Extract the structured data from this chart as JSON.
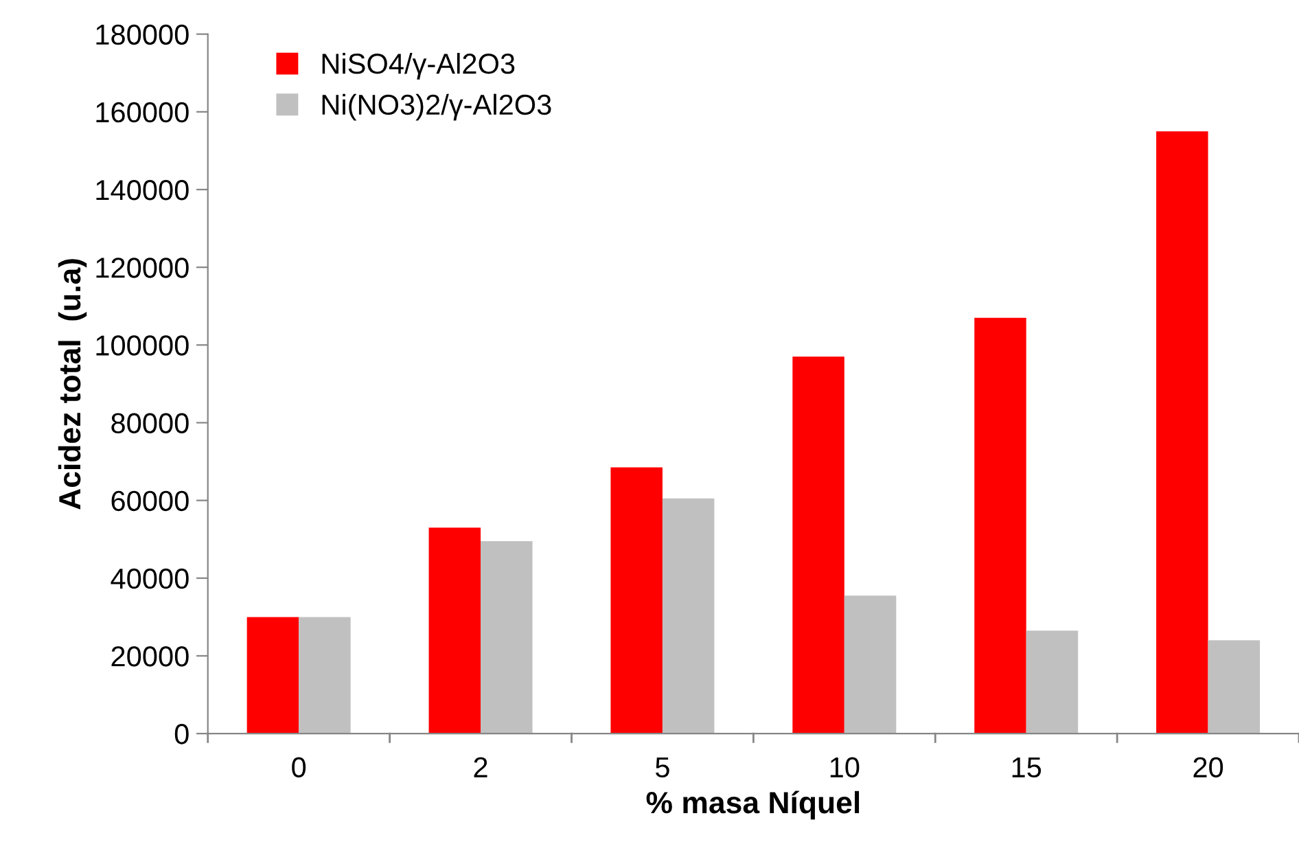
{
  "chart_data": {
    "type": "bar",
    "xlabel": "% masa Níquel",
    "ylabel": "Acidez total  (u.a)",
    "categories": [
      "0",
      "2",
      "5",
      "10",
      "15",
      "20"
    ],
    "series": [
      {
        "name": "NiSO4/γ-Al2O3",
        "color": "#ff0000",
        "values": [
          30000,
          53000,
          68500,
          97000,
          107000,
          155000
        ]
      },
      {
        "name": "Ni(NO3)2/γ-Al2O3",
        "color": "#c0c0c0",
        "values": [
          30000,
          49500,
          60500,
          35500,
          26500,
          24000
        ]
      }
    ],
    "ylim": [
      0,
      180000
    ],
    "yticks": [
      0,
      20000,
      40000,
      60000,
      80000,
      100000,
      120000,
      140000,
      160000,
      180000
    ],
    "grid": false,
    "legend": "top left"
  }
}
